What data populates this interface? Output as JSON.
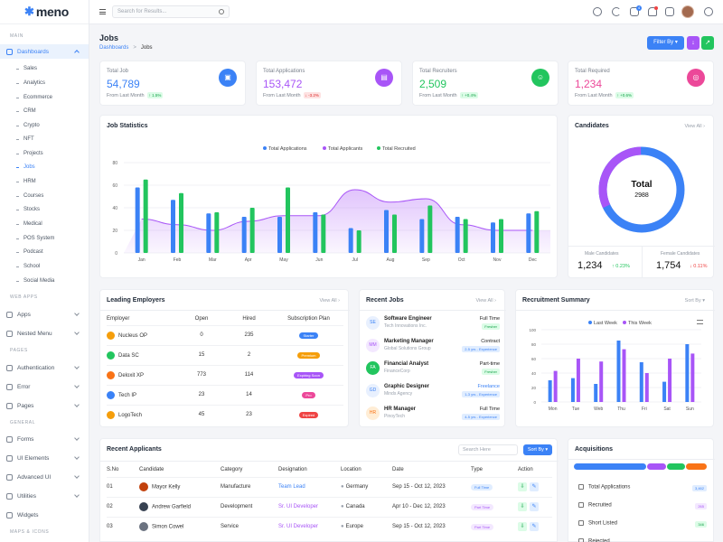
{
  "app": {
    "logo": "meno"
  },
  "sidebar": {
    "sections": {
      "main": "MAIN",
      "web_apps": "WEB APPS",
      "pages": "PAGES",
      "general": "GENERAL",
      "maps": "MAPS & ICONS"
    },
    "dashboards": "Dashboards",
    "sub": [
      "Sales",
      "Analytics",
      "Ecommerce",
      "CRM",
      "Crypto",
      "NFT",
      "Projects",
      "Jobs",
      "HRM",
      "Courses",
      "Stocks",
      "Medical",
      "POS System",
      "Podcast",
      "School",
      "Social Media"
    ],
    "apps": "Apps",
    "nested": "Nested Menu",
    "auth": "Authentication",
    "error": "Error",
    "pages": "Pages",
    "forms": "Forms",
    "ui_elements": "UI Elements",
    "advanced_ui": "Advanced UI",
    "utilities": "Utilities",
    "widgets": "Widgets"
  },
  "header": {
    "search_placeholder": "Search for Results...",
    "cart_badge": "4"
  },
  "page": {
    "title": "Jobs",
    "crumb_home": "Dashboards",
    "crumb_sep": ">",
    "crumb_current": "Jobs",
    "filter": "Filter By"
  },
  "stats": [
    {
      "label": "Total Job",
      "value": "54,789",
      "foot": "From Last Month",
      "change": "↑ 1.5%",
      "color": "#3b82f6",
      "icon": "briefcase-icon"
    },
    {
      "label": "Total Applications",
      "value": "153,472",
      "foot": "From Last Month",
      "change": "↓ -3.2%",
      "color": "#a855f7",
      "icon": "document-icon"
    },
    {
      "label": "Total Recruiters",
      "value": "2,509",
      "foot": "From Last Month",
      "change": "↑ +0.4%",
      "color": "#22c55e",
      "icon": "user-icon"
    },
    {
      "label": "Total Required",
      "value": "1,234",
      "foot": "From Last Month",
      "change": "↑ +0.6%",
      "color": "#ec4899",
      "icon": "target-icon"
    }
  ],
  "job_stats": {
    "title": "Job Statistics",
    "chart_data": {
      "type": "bar",
      "categories": [
        "Jan",
        "Feb",
        "Mar",
        "Apr",
        "May",
        "Jun",
        "Jul",
        "Aug",
        "Sep",
        "Oct",
        "Nov",
        "Dec"
      ],
      "ylim": [
        0,
        80
      ],
      "yticks": [
        "0",
        "20",
        "40",
        "60",
        "80"
      ],
      "series": [
        {
          "name": "Total Applications",
          "color": "#3b82f6",
          "values": [
            58,
            47,
            35,
            32,
            32,
            36,
            22,
            38,
            30,
            32,
            27,
            35
          ]
        },
        {
          "name": "Total Applicants",
          "color": "#a855f7",
          "values": [
            30,
            25,
            20,
            28,
            33,
            33,
            56,
            45,
            48,
            25,
            20,
            20
          ]
        },
        {
          "name": "Total Recruited",
          "color": "#22c55e",
          "values": [
            65,
            53,
            36,
            40,
            58,
            34,
            20,
            34,
            42,
            30,
            30,
            37
          ]
        }
      ]
    }
  },
  "candidates": {
    "title": "Candidates",
    "view_all": "View All",
    "total_label": "Total",
    "total": "2988",
    "male_label": "Male Candidates",
    "male": "1,234",
    "male_change": "↑ 0.23%",
    "female_label": "Female Candidates",
    "female": "1,754",
    "female_change": "↓ 0.11%"
  },
  "employers": {
    "title": "Leading Employers",
    "view_all": "View All",
    "headers": [
      "Employer",
      "Open",
      "Hired",
      "Subscription Plan"
    ],
    "rows": [
      {
        "name": "Nucleus OP",
        "open": "0",
        "hired": "235",
        "plan": "Starter",
        "color": "#3b82f6",
        "logo": "#f59e0b"
      },
      {
        "name": "Data SC",
        "open": "15",
        "hired": "2",
        "plan": "Premium",
        "color": "#f59e0b",
        "logo": "#22c55e"
      },
      {
        "name": "Deloxit XP",
        "open": "773",
        "hired": "114",
        "plan": "Expiring Soon",
        "color": "#a855f7",
        "logo": "#f97316"
      },
      {
        "name": "Tech IP",
        "open": "23",
        "hired": "14",
        "plan": "Pro",
        "color": "#ec4899",
        "logo": "#3b82f6"
      },
      {
        "name": "LogoTech",
        "open": "45",
        "hired": "23",
        "plan": "Expired",
        "color": "#ef4444",
        "logo": "#f59e0b"
      }
    ]
  },
  "recent_jobs": {
    "title": "Recent Jobs",
    "view_all": "View All",
    "items": [
      {
        "initials": "SE",
        "title": "Software Engineer",
        "company": "Tech Innovations Inc.",
        "type": "Full Time",
        "tag": "Fresher",
        "bg": "#e8f0fe",
        "fg": "#3b82f6",
        "tag_bg": "#dcfce7",
        "tag_fg": "#16a34a"
      },
      {
        "initials": "MM",
        "title": "Marketing Manager",
        "company": "Global Solutions Group",
        "type": "Contract",
        "tag": "2-5 yrs - Experience",
        "bg": "#f3e8ff",
        "fg": "#a855f7",
        "tag_bg": "#e0edff",
        "tag_fg": "#3b82f6"
      },
      {
        "initials": "FA",
        "title": "Financial Analyst",
        "company": "FinanceCorp",
        "type": "Part-time",
        "tag": "Fresher",
        "bg": "#22c55e",
        "fg": "#ffffff",
        "tag_bg": "#dcfce7",
        "tag_fg": "#16a34a"
      },
      {
        "initials": "GD",
        "title": "Graphic Designer",
        "company": "Minds Agency",
        "type": "Freelance",
        "tag": "1-3 yrs - Experience",
        "bg": "#e8f0fe",
        "fg": "#3b82f6",
        "tag_bg": "#e0edff",
        "tag_fg": "#3b82f6"
      },
      {
        "initials": "HR",
        "title": "HR Manager",
        "company": "PinoyTech",
        "type": "Full Time",
        "tag": "4-5 yrs - Experience",
        "bg": "#ffedd5",
        "fg": "#f97316",
        "tag_bg": "#e0edff",
        "tag_fg": "#3b82f6"
      }
    ]
  },
  "recruitment": {
    "title": "Recruitment Summary",
    "sort": "Sort By",
    "chart_data": {
      "type": "bar",
      "categories": [
        "Mon",
        "Tue",
        "Web",
        "Thu",
        "Fri",
        "Sat",
        "Sun"
      ],
      "ylim": [
        0,
        100
      ],
      "yticks": [
        "0",
        "20",
        "40",
        "60",
        "80",
        "100"
      ],
      "series": [
        {
          "name": "Last Week",
          "color": "#3b82f6",
          "values": [
            30,
            33,
            25,
            85,
            55,
            28,
            80
          ]
        },
        {
          "name": "This Week",
          "color": "#a855f7",
          "values": [
            43,
            60,
            56,
            73,
            40,
            60,
            67
          ]
        }
      ]
    }
  },
  "applicants": {
    "title": "Recent Applicants",
    "search_placeholder": "Search Here",
    "sort": "Sort By",
    "headers": [
      "S.No",
      "Candidate",
      "Category",
      "Designation",
      "Location",
      "Date",
      "Type",
      "Action"
    ],
    "rows": [
      {
        "no": "01",
        "name": "Mayor Kelly",
        "category": "Manufacture",
        "designation": "Team Lead",
        "location": "Germany",
        "date": "Sep 15 - Oct 12, 2023",
        "type": "Full Time",
        "desig_color": "#3b82f6",
        "type_bg": "#e0edff",
        "type_fg": "#3b82f6",
        "avatar": "#c2410c"
      },
      {
        "no": "02",
        "name": "Andrew Garfield",
        "category": "Development",
        "designation": "Sr. UI Developer",
        "location": "Canada",
        "date": "Apr 10 - Dec 12, 2023",
        "type": "Part Time",
        "desig_color": "#a855f7",
        "type_bg": "#f3e8ff",
        "type_fg": "#a855f7",
        "avatar": "#374151"
      },
      {
        "no": "03",
        "name": "Simon Cowel",
        "category": "Service",
        "designation": "Sr. UI Developer",
        "location": "Europe",
        "date": "Sep 15 - Oct 12, 2023",
        "type": "Part Time",
        "desig_color": "#a855f7",
        "type_bg": "#f3e8ff",
        "type_fg": "#a855f7",
        "avatar": "#6b7280"
      }
    ]
  },
  "acquisitions": {
    "title": "Acquisitions",
    "items": [
      {
        "label": "Total Applications",
        "badge": "3,462",
        "bg": "#e0edff",
        "fg": "#3b82f6"
      },
      {
        "label": "Recruited",
        "badge": "265",
        "bg": "#f3e8ff",
        "fg": "#a855f7"
      },
      {
        "label": "Short Listed",
        "badge": "346",
        "bg": "#dcfce7",
        "fg": "#16a34a"
      },
      {
        "label": "Rejected",
        "badge": "",
        "bg": "#fee2e2",
        "fg": "#ef4444"
      }
    ],
    "bar": [
      {
        "color": "#3b82f6",
        "share": 55
      },
      {
        "color": "#a855f7",
        "share": 15
      },
      {
        "color": "#22c55e",
        "share": 14
      },
      {
        "color": "#f97316",
        "share": 16
      }
    ]
  }
}
